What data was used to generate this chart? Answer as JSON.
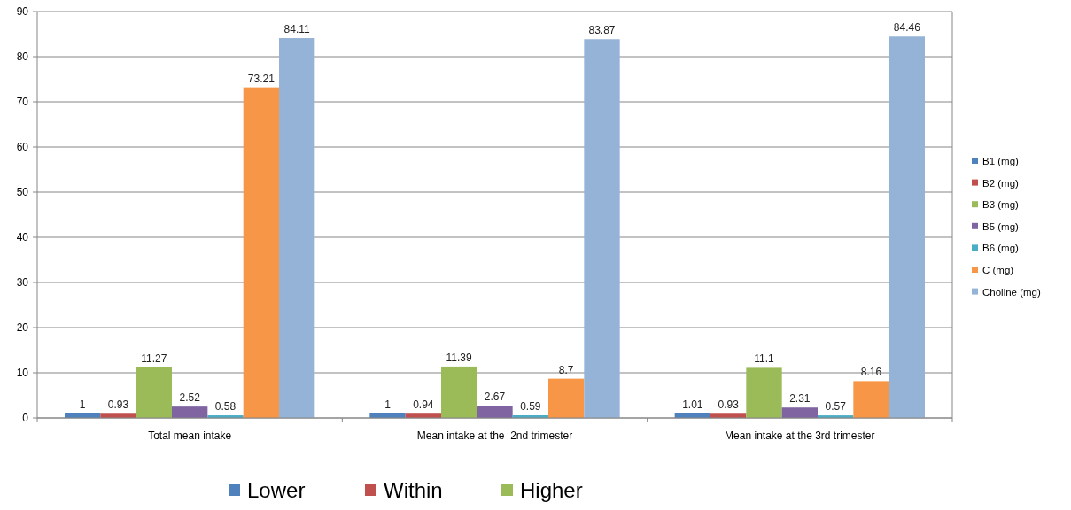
{
  "chart_data": {
    "type": "bar",
    "categories": [
      "Total mean intake",
      "Mean intake at the  2nd trimester",
      "Mean intake at the 3rd trimester"
    ],
    "series": [
      {
        "name": "B1 (mg)",
        "color": "#4f81bd",
        "values": [
          1,
          1,
          1.01
        ]
      },
      {
        "name": "B2 (mg)",
        "color": "#c0504d",
        "values": [
          0.93,
          0.94,
          0.93
        ]
      },
      {
        "name": "B3 (mg)",
        "color": "#9bbb59",
        "values": [
          11.27,
          11.39,
          11.1
        ]
      },
      {
        "name": "B5 (mg)",
        "color": "#8064a2",
        "values": [
          2.52,
          2.67,
          2.31
        ]
      },
      {
        "name": "B6 (mg)",
        "color": "#4bacc6",
        "values": [
          0.58,
          0.59,
          0.57
        ]
      },
      {
        "name": "C (mg)",
        "color": "#f79646",
        "values": [
          73.21,
          8.7,
          8.16
        ]
      },
      {
        "name": "Choline (mg)",
        "color": "#95b3d7",
        "values": [
          84.11,
          83.87,
          84.46
        ]
      }
    ],
    "ylim": [
      0,
      90
    ],
    "yticks": [
      0,
      10,
      20,
      30,
      40,
      50,
      60,
      70,
      80,
      90
    ],
    "grid": "y",
    "legend": "right",
    "data_labels": true,
    "annotations": [
      "Lower",
      "Within",
      "Higher"
    ]
  }
}
